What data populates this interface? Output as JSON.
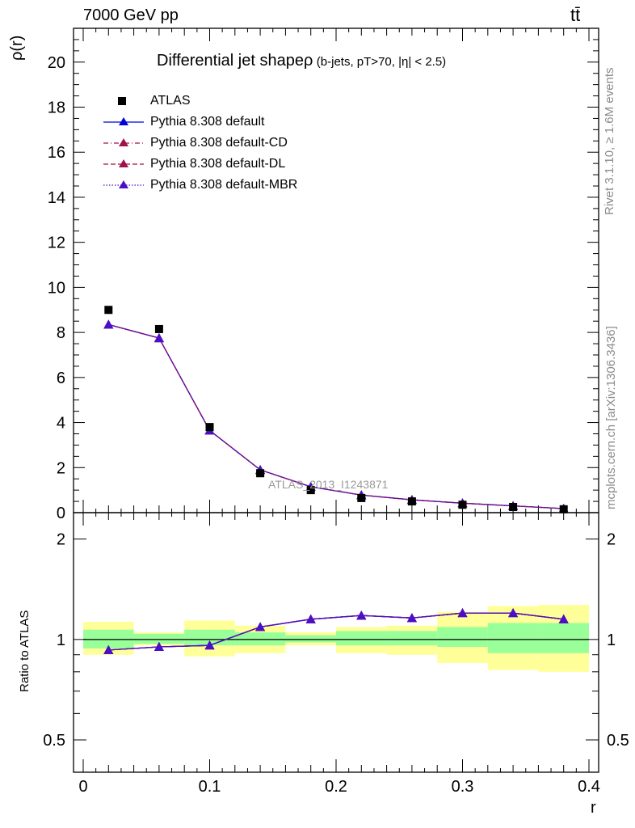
{
  "header": {
    "left": "7000 GeV pp",
    "right": "tt̄"
  },
  "side_labels": {
    "rivet": "Rivet 3.1.10, ≥ 1.6M events",
    "mcplots": "mcplots.cern.ch [arXiv:1306.3436]"
  },
  "watermark": "ATLAS_2013_I1243871",
  "chart_data": [
    {
      "type": "scatter",
      "title": "Differential jet shapeρ",
      "subtitle": "(b-jets, pT>70, |η| < 2.5)",
      "ylabel": "ρ(r)",
      "xlabel": "",
      "xlim": [
        0,
        0.4
      ],
      "ylim": [
        0,
        21.5
      ],
      "yticks": [
        0,
        2,
        4,
        6,
        8,
        10,
        12,
        14,
        16,
        18,
        20
      ],
      "x": [
        0.02,
        0.06,
        0.1,
        0.14,
        0.18,
        0.22,
        0.26,
        0.3,
        0.34,
        0.38
      ],
      "series": [
        {
          "name": "ATLAS",
          "marker": "square",
          "color": "#000000",
          "values": [
            9.0,
            8.15,
            3.8,
            1.75,
            1.0,
            0.65,
            0.5,
            0.35,
            0.25,
            0.15
          ]
        },
        {
          "name": "Pythia 8.308 default",
          "marker": "triangle",
          "color": "#0000dd",
          "dash": "solid",
          "values": [
            8.35,
            7.75,
            3.65,
            1.9,
            1.15,
            0.78,
            0.57,
            0.42,
            0.3,
            0.18
          ]
        },
        {
          "name": "Pythia 8.308 default-CD",
          "marker": "triangle",
          "color": "#a0124e",
          "dash": "dashdot",
          "values": [
            8.35,
            7.75,
            3.65,
            1.9,
            1.15,
            0.78,
            0.57,
            0.42,
            0.3,
            0.18
          ]
        },
        {
          "name": "Pythia 8.308 default-DL",
          "marker": "triangle",
          "color": "#a0124e",
          "dash": "dash",
          "values": [
            8.35,
            7.75,
            3.65,
            1.9,
            1.15,
            0.78,
            0.57,
            0.42,
            0.3,
            0.18
          ]
        },
        {
          "name": "Pythia 8.308 default-MBR",
          "marker": "triangle",
          "color": "#4a10c8",
          "dash": "dot",
          "values": [
            8.35,
            7.75,
            3.65,
            1.9,
            1.15,
            0.78,
            0.57,
            0.42,
            0.3,
            0.18
          ]
        }
      ],
      "grid": false,
      "legend": "top-left"
    },
    {
      "type": "line",
      "title": "",
      "ylabel": "Ratio to ATLAS",
      "xlabel": "r",
      "xlim": [
        0,
        0.4
      ],
      "ylim": [
        0.4,
        2.4
      ],
      "scale": "log",
      "yticks": [
        0.5,
        1,
        2
      ],
      "xticks": [
        0,
        0.1,
        0.2,
        0.3,
        0.4
      ],
      "x": [
        0.02,
        0.06,
        0.1,
        0.14,
        0.18,
        0.22,
        0.26,
        0.3,
        0.34,
        0.38
      ],
      "bins": [
        [
          0,
          0.04
        ],
        [
          0.04,
          0.08
        ],
        [
          0.08,
          0.12
        ],
        [
          0.12,
          0.16
        ],
        [
          0.16,
          0.2
        ],
        [
          0.2,
          0.24
        ],
        [
          0.24,
          0.28
        ],
        [
          0.28,
          0.32
        ],
        [
          0.32,
          0.36
        ],
        [
          0.36,
          0.4
        ]
      ],
      "band_stat": {
        "color": "#99ff99",
        "low": [
          0.94,
          0.97,
          0.96,
          0.96,
          0.98,
          0.96,
          0.96,
          0.95,
          0.91,
          0.91
        ],
        "high": [
          1.07,
          1.04,
          1.07,
          1.05,
          1.03,
          1.06,
          1.06,
          1.09,
          1.12,
          1.12
        ]
      },
      "band_total": {
        "color": "#ffff99",
        "low": [
          0.9,
          0.96,
          0.89,
          0.91,
          0.96,
          0.91,
          0.9,
          0.85,
          0.81,
          0.8
        ],
        "high": [
          1.13,
          1.05,
          1.14,
          1.1,
          1.05,
          1.09,
          1.1,
          1.21,
          1.26,
          1.27
        ]
      },
      "series": [
        {
          "name": "Pythia 8.308 default",
          "color": "#0000dd",
          "values": [
            0.93,
            0.95,
            0.96,
            1.09,
            1.15,
            1.18,
            1.16,
            1.2,
            1.2,
            1.15
          ]
        },
        {
          "name": "Pythia 8.308 default-CD",
          "color": "#a0124e",
          "values": [
            0.93,
            0.95,
            0.96,
            1.09,
            1.15,
            1.18,
            1.16,
            1.2,
            1.2,
            1.15
          ]
        },
        {
          "name": "Pythia 8.308 default-DL",
          "color": "#a0124e",
          "values": [
            0.93,
            0.95,
            0.96,
            1.09,
            1.15,
            1.18,
            1.16,
            1.2,
            1.2,
            1.15
          ]
        },
        {
          "name": "Pythia 8.308 default-MBR",
          "color": "#4a10c8",
          "values": [
            0.93,
            0.95,
            0.96,
            1.09,
            1.15,
            1.18,
            1.16,
            1.2,
            1.2,
            1.15
          ]
        }
      ]
    }
  ]
}
